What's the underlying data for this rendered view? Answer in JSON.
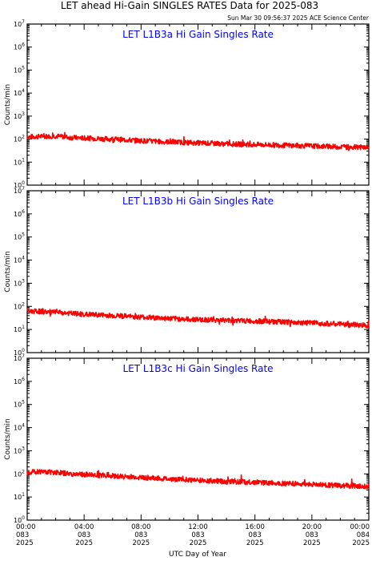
{
  "title": "LET ahead Hi-Gain SINGLES RATES Data for 2025-083",
  "timestamp": "Sun Mar 30 09:56:37 2025 ACE Science Center",
  "x_axis_label": "UTC Day of Year",
  "colors": {
    "series": "#ff0000",
    "panel_title": "#0000ff",
    "axes": "#000000"
  },
  "chart_data": [
    {
      "type": "line",
      "title": "LET L1B3a Hi Gain Singles Rate",
      "ylabel": "Counts/min",
      "yscale": "log",
      "ylim": [
        1,
        10000000
      ],
      "xlim": [
        0,
        24
      ],
      "x_unit": "hours UTC",
      "x_ticks": [
        {
          "time": "00:00",
          "doy": "083",
          "year": "2025"
        },
        {
          "time": "04:00",
          "doy": "083",
          "year": "2025"
        },
        {
          "time": "08:00",
          "doy": "083",
          "year": "2025"
        },
        {
          "time": "12:00",
          "doy": "083",
          "year": "2025"
        },
        {
          "time": "16:00",
          "doy": "083",
          "year": "2025"
        },
        {
          "time": "20:00",
          "doy": "083",
          "year": "2025"
        },
        {
          "time": "00:00",
          "doy": "084",
          "year": "2025"
        }
      ],
      "series": [
        {
          "x": [
            0,
            1,
            2,
            3,
            4,
            5,
            6,
            7,
            8,
            9,
            10,
            11,
            12,
            13,
            14,
            15,
            16,
            17,
            18,
            19,
            20,
            21,
            22,
            23,
            24
          ],
          "y": [
            125,
            130,
            135,
            118,
            110,
            105,
            100,
            92,
            85,
            80,
            75,
            72,
            68,
            65,
            62,
            60,
            58,
            56,
            54,
            52,
            50,
            48,
            46,
            45,
            44
          ]
        }
      ]
    },
    {
      "type": "line",
      "title": "LET L1B3b Hi Gain Singles Rate",
      "ylabel": "Counts/min",
      "yscale": "log",
      "ylim": [
        1,
        10000000
      ],
      "xlim": [
        0,
        24
      ],
      "series": [
        {
          "x": [
            0,
            1,
            2,
            3,
            4,
            5,
            6,
            7,
            8,
            9,
            10,
            11,
            12,
            13,
            14,
            15,
            16,
            17,
            18,
            19,
            20,
            21,
            22,
            23,
            24
          ],
          "y": [
            62,
            60,
            55,
            50,
            45,
            43,
            40,
            37,
            35,
            32,
            30,
            28,
            27,
            26,
            25,
            24,
            23,
            22,
            21,
            20,
            19,
            18,
            17,
            16,
            15
          ]
        }
      ]
    },
    {
      "type": "line",
      "title": "LET L1B3c Hi Gain Singles Rate",
      "ylabel": "Counts/min",
      "yscale": "log",
      "ylim": [
        1,
        10000000
      ],
      "xlim": [
        0,
        24
      ],
      "series": [
        {
          "x": [
            0,
            1,
            2,
            3,
            4,
            5,
            6,
            7,
            8,
            9,
            10,
            11,
            12,
            13,
            14,
            15,
            16,
            17,
            18,
            19,
            20,
            21,
            22,
            23,
            24
          ],
          "y": [
            120,
            125,
            118,
            100,
            92,
            88,
            82,
            75,
            70,
            65,
            60,
            57,
            53,
            50,
            47,
            45,
            43,
            41,
            39,
            37,
            35,
            33,
            31,
            30,
            29
          ]
        }
      ]
    }
  ]
}
